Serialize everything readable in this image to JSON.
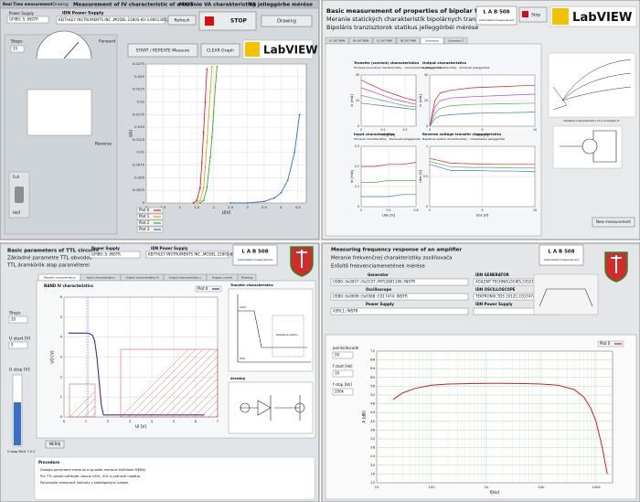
{
  "iv": {
    "tabs": [
      "Real Time measurement",
      "Drawing"
    ],
    "title": "Measurement of IV characteristic of a DUT",
    "title_sk": "Meranie VA charakteristiky",
    "title_hu": "VA jelleggörbe mérése",
    "power_supply_label": "Power Supply",
    "power_supply": "GPIB0::5::INSTR",
    "idn_label": "IDN Power Supply",
    "idn": "KEITHLEY INSTRUMENTS INC.,MODEL 2280S-60-3,9001300,2.04",
    "refresh": "Refresh",
    "stop": "STOP",
    "drawing": "Drawing",
    "steps_label": "Steps",
    "steps": "20",
    "forward": "Forward",
    "reverse": "Reverse",
    "full": "Full",
    "half": "Half",
    "start": "START / REPEATE Measure",
    "clear": "CLEAR Graph",
    "labview": "LabVIEW",
    "chart": {
      "type": "line",
      "xlabel": "U[V]",
      "ylabel": "I[A]",
      "xlim": [
        0,
        4.75
      ],
      "xticks": [
        0,
        0.5,
        1,
        1.5,
        2,
        2.5,
        3,
        3.5,
        4,
        4.5
      ],
      "ylim": [
        0,
        0.0275
      ],
      "yticks": [
        0,
        0.0025,
        0.005,
        0.0075,
        0.01,
        0.0125,
        0.015,
        0.0175,
        0.02,
        0.0225,
        0.025,
        0.0275
      ],
      "grid": true,
      "series": [
        {
          "name": "Plot 0",
          "color": "#e0202a",
          "x": [
            1.4,
            1.5,
            1.6,
            1.65,
            1.7,
            1.75,
            1.8
          ],
          "values": [
            0,
            0.0005,
            0.003,
            0.008,
            0.014,
            0.02,
            0.0265
          ]
        },
        {
          "name": "Plot 1",
          "color": "#e8a020",
          "x": [
            1.5,
            1.6,
            1.7,
            1.75,
            1.8,
            1.85,
            1.9,
            1.95
          ],
          "values": [
            0,
            0.0005,
            0.003,
            0.007,
            0.012,
            0.017,
            0.022,
            0.027
          ]
        },
        {
          "name": "Plot 2",
          "color": "#30b030",
          "x": [
            1.6,
            1.7,
            1.8,
            1.9,
            1.95,
            2.0,
            2.05,
            2.1
          ],
          "values": [
            0,
            0.0005,
            0.003,
            0.009,
            0.013,
            0.018,
            0.023,
            0.027
          ]
        },
        {
          "name": "Plot 3",
          "color": "#3070d0",
          "x": [
            2.5,
            3.0,
            3.5,
            3.8,
            4.0,
            4.2,
            4.4,
            4.55
          ],
          "values": [
            0,
            0,
            0.0003,
            0.001,
            0.002,
            0.0045,
            0.01,
            0.0175
          ]
        }
      ]
    }
  },
  "bjt": {
    "title": "Basic measurement of properties of bipolar transistors",
    "title_sk": "Meranie statických charakteristík bipolárnych tranzistorov",
    "title_hu": "Bipoláris tranzisztorok statikus jelleggörbéi mérése",
    "lab": "L A B   508",
    "lab_sub": "Automated measurement",
    "stop": "Stop",
    "labview": "LabVIEW",
    "tabs": [
      "IC CHT NPN",
      "IB CHT NPN",
      "IC CHT PNP",
      "IB CHT PNP",
      "Summary",
      "Summary 2"
    ],
    "new_measurement": "New measurement",
    "figure_caption": "Detailed characteristics of a complete IV",
    "charts": [
      {
        "type": "line",
        "title": "Transfer (current) characteristics",
        "subtitle": "Prúdové prevodové charakteristiky – Áramvezérlési jelleggörbék",
        "xlabel": "Ib [mA]",
        "ylabel": "Ic [mA]",
        "x": [
          0,
          0.05,
          0.1,
          0.15,
          0.2,
          0.25
        ],
        "xlim": [
          0,
          0.25
        ],
        "xticks": [
          0,
          0.1,
          0.2
        ],
        "ylim": [
          0,
          40
        ],
        "yticks": [
          0,
          20,
          40
        ],
        "grid": true,
        "series": [
          {
            "color": "#e41a1c",
            "values": [
              36,
              32,
              28,
              25,
              22,
              20
            ]
          },
          {
            "color": "#c040c0",
            "values": [
              30,
              27,
              24,
              21,
              19,
              17
            ]
          },
          {
            "color": "#4daf4a",
            "values": [
              24,
              22,
              20,
              18,
              16,
              15
            ]
          },
          {
            "color": "#377eb8",
            "values": [
              18,
              17,
              16,
              15,
              14,
              13
            ]
          }
        ]
      },
      {
        "type": "line",
        "title": "Output characteristics",
        "subtitle": "Výstupné charakteristiky – Kimeneti jelleggörbék",
        "xlabel": "Uce [V]",
        "ylabel": "Ic [mA]",
        "x": [
          0,
          0.5,
          1,
          2,
          4,
          7,
          10
        ],
        "xlim": [
          0,
          10
        ],
        "xticks": [
          0,
          5,
          10
        ],
        "ylim": [
          0,
          40
        ],
        "yticks": [
          0,
          20,
          40
        ],
        "grid": true,
        "series": [
          {
            "color": "#e41a1c",
            "values": [
              0,
              20,
              26,
              28,
              30,
              31,
              32
            ]
          },
          {
            "color": "#c040c0",
            "values": [
              0,
              15,
              20,
              22,
              23,
              24,
              25
            ]
          },
          {
            "color": "#4daf4a",
            "values": [
              0,
              10,
              14,
              16,
              17,
              17.5,
              18
            ]
          },
          {
            "color": "#377eb8",
            "values": [
              0,
              6,
              8,
              9,
              10,
              10.5,
              11
            ]
          }
        ]
      },
      {
        "type": "line",
        "title": "Input characteristics",
        "subtitle": "Vstupné charakteristiky – Bemeneti jelleggörbék",
        "xlabel": "Ube [V]",
        "ylabel": "Ib [mA]",
        "x": [
          0,
          0.2,
          0.4,
          0.6,
          0.8
        ],
        "xlim": [
          0,
          0.8
        ],
        "xticks": [
          0,
          0.4,
          0.8
        ],
        "ylim": [
          0,
          0.3
        ],
        "yticks": [
          0,
          0.1,
          0.2,
          0.3
        ],
        "grid": true,
        "series": [
          {
            "color": "#e41a1c",
            "values": [
              0.2,
              0.2,
              0.21,
              0.21,
              0.22
            ]
          },
          {
            "color": "#4daf4a",
            "values": [
              0.12,
              0.12,
              0.13,
              0.13,
              0.13
            ]
          },
          {
            "color": "#377eb8",
            "values": [
              0.05,
              0.05,
              0.05,
              0.06,
              0.06
            ]
          }
        ]
      },
      {
        "type": "line",
        "title": "Reverse voltage transfer characteristics",
        "subtitle": "Napäťové spätné charakteristiky – Visszahatási jelleggörbék",
        "xlabel": "Uce [V]",
        "ylabel": "Ube [V]",
        "x": [
          0,
          2,
          4,
          6,
          8,
          10
        ],
        "xlim": [
          0,
          10
        ],
        "xticks": [
          0,
          5,
          10
        ],
        "ylim": [
          0,
          1
        ],
        "yticks": [
          0,
          0.5,
          1
        ],
        "grid": true,
        "series": [
          {
            "color": "#e41a1c",
            "values": [
              0.8,
              0.72,
              0.71,
              0.7,
              0.7,
              0.7
            ]
          },
          {
            "color": "#4daf4a",
            "values": [
              0.75,
              0.66,
              0.65,
              0.65,
              0.64,
              0.64
            ]
          },
          {
            "color": "#377eb8",
            "values": [
              0.7,
              0.6,
              0.6,
              0.59,
              0.59,
              0.58
            ]
          }
        ]
      }
    ]
  },
  "ttl": {
    "title": "Basic parameters of TTL circuits",
    "title_sk": "Základné parametre TTL obvodov",
    "title_hu": "TTL áramkörök alap paraméterei",
    "power_supply_label": "Power Supply",
    "power_supply": "GPIB0::5::INSTR",
    "idn_label": "IDN Power Supply",
    "idn": "KEITHLEY INSTRUMENTS INC.,MODEL 2280S-60-3",
    "lab": "L A B   508",
    "lab_sub": "Automated measurement",
    "tabs": [
      "Transfer characteristics",
      "Input characteristics",
      "Output characteristics H",
      "Output characteristics L",
      "Supply current",
      "Drawing"
    ],
    "steps_label": "Steps",
    "steps": "20",
    "ustart_label": "U start [V]",
    "ustart": "0",
    "ustop_label": "U stop [V]",
    "ustop_value_label": "U stop MAX 7.0 V",
    "measure": "MERAJ",
    "diagram_title": "Transfer characteristics",
    "diagram_high": "UOH",
    "diagram_low": "UOL",
    "diagram_forbidden": "Zakázané pásmo",
    "drawing_title": "drawing",
    "procedure_title": "Procedure",
    "procedure": [
      "Zadajte parametre merania a spustite meranie tlačidlom MERAJ.",
      "Pre TTL obvod odčítajte úrovne UOH, UOL a prahové napätie.",
      "Porovnajte namerané hodnoty s katalógovými údajmi."
    ],
    "chart": {
      "type": "line",
      "title": "NAND IV characteristics",
      "xlabel": "UI [V]",
      "ylabel": "UO [V]",
      "xlim": [
        0,
        7
      ],
      "xticks": [
        0,
        1,
        2,
        3,
        4,
        5,
        6,
        7
      ],
      "ylim": [
        0,
        6
      ],
      "yticks": [
        0,
        1,
        2,
        3,
        4,
        5,
        6
      ],
      "grid": true,
      "series": [
        {
          "name": "Plot 0",
          "color": "#4b2c8a",
          "x": [
            0.2,
            0.5,
            0.8,
            1.1,
            1.3,
            1.4,
            1.5,
            1.6,
            1.7,
            1.8,
            2,
            3,
            4,
            5,
            6.4
          ],
          "values": [
            4.2,
            4.2,
            4.2,
            4.2,
            4.1,
            3.8,
            3.0,
            1.8,
            0.6,
            0.1,
            0.1,
            0.1,
            0.1,
            0.1,
            0.1
          ]
        }
      ]
    }
  },
  "freq": {
    "title": "Measuring frequency response of an amplifier",
    "title_sk": "Meranie frekvenčnej charakteristiky zosilňovača",
    "title_hu": "Erősítő frekvenciamenetének mérése",
    "lab": "L A B   508",
    "lab_sub": "Automated measurement",
    "generator_label": "Generator",
    "generator": "USB0::0x0957::0x2C07::MY52801106::INSTR",
    "oscilloscope_label": "Oscilloscope",
    "oscilloscope": "USB0::0x0699::0x0368::C017474::INSTR",
    "power_supply_label": "Power Supply",
    "power_supply": "ASRL1::INSTR",
    "idn_generator_label": "IDN GENERATOR",
    "idn_generator": "AGILENT TECHNOLOGIES,33521A,MY52801106",
    "idn_oscilloscope_label": "IDN OSCILLOSCOPE",
    "idn_oscilloscope": "TEKTRONIX,TDS 2012C,C017474",
    "idn_power_label": "IDN Power Supply",
    "points_label": "points/decade",
    "points": "20",
    "fstart_label": "f start [Hz]",
    "fstart": "10",
    "fstop_label": "f stop [Hz]",
    "fstop": "200k",
    "chart": {
      "type": "line",
      "xlabel": "f[Hz]",
      "ylabel": "A [dB]",
      "xlog": true,
      "xlim": [
        10,
        200000
      ],
      "xticks": [
        10,
        100,
        {
          "value": 1000,
          "label": "1k"
        },
        {
          "value": 10000,
          "label": "10k"
        },
        {
          "value": 100000,
          "label": "100k"
        }
      ],
      "ylim": [
        12,
        72
      ],
      "yticks": [
        12,
        16,
        20,
        24,
        28,
        32,
        36,
        40,
        44,
        48,
        52,
        56,
        60,
        64,
        68,
        72
      ],
      "grid": true,
      "series": [
        {
          "name": "Plot 0",
          "color": "#d02020",
          "x": [
            20,
            30,
            50,
            100,
            200,
            500,
            1000,
            2000,
            5000,
            10000,
            20000,
            40000,
            60000,
            80000,
            100000,
            130000,
            160000
          ],
          "values": [
            50,
            53,
            55,
            56.5,
            57,
            57.2,
            57.3,
            57.3,
            57.2,
            57,
            56.5,
            54.5,
            51,
            46,
            40,
            28,
            16
          ]
        }
      ]
    }
  }
}
